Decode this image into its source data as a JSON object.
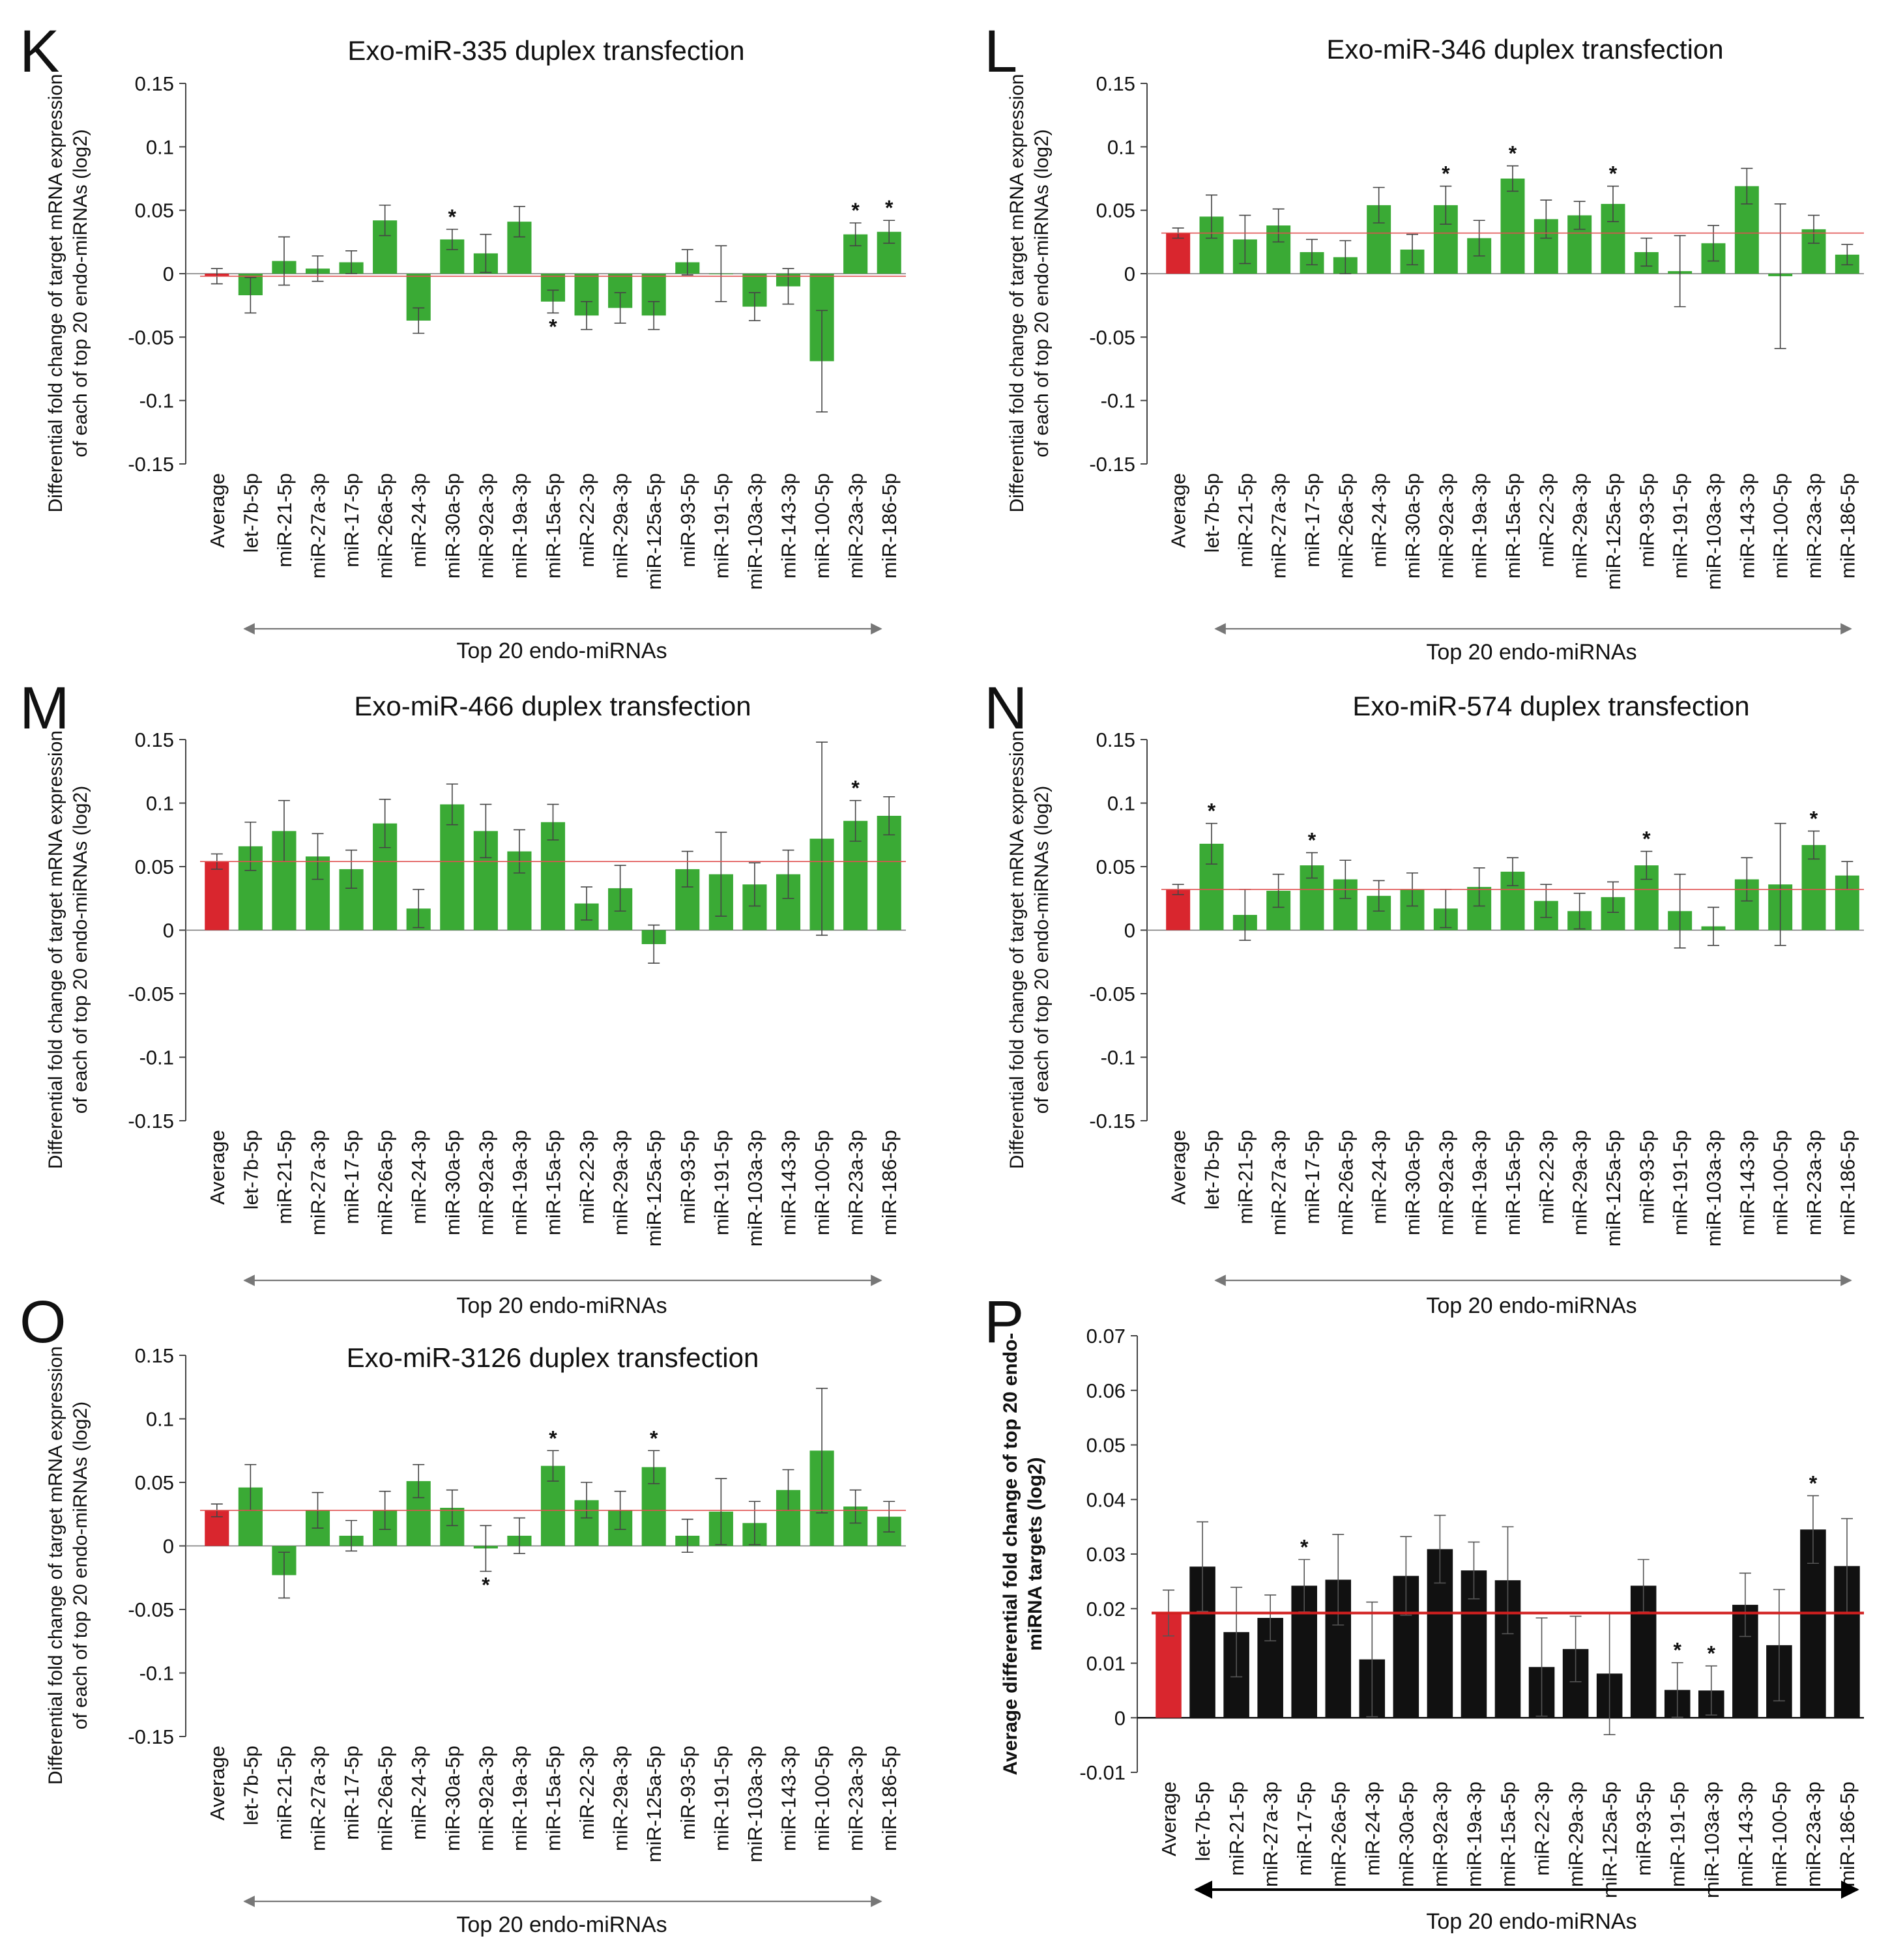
{
  "categories": [
    "Average",
    "let-7b-5p",
    "miR-21-5p",
    "miR-27a-3p",
    "miR-17-5p",
    "miR-26a-5p",
    "miR-24-3p",
    "miR-30a-5p",
    "miR-92a-3p",
    "miR-19a-3p",
    "miR-15a-5p",
    "miR-22-3p",
    "miR-29a-3p",
    "miR-125a-5p",
    "miR-93-5p",
    "miR-191-5p",
    "miR-103a-3p",
    "miR-143-3p",
    "miR-100-5p",
    "miR-23a-3p",
    "miR-186-5p"
  ],
  "colors": {
    "average": "#d9262e",
    "green": "#3aaa35",
    "black": "#111111",
    "ref_line": "#e05050",
    "ref_line_p": "#d21f1f"
  },
  "chart_data": [
    {
      "type": "bar",
      "panel_letter": "K",
      "title": "Exo-miR-335 duplex transfection",
      "ylabel": [
        "Differential fold change of target mRNA expression",
        "of each of top 20 endo-miRNAs (log2)"
      ],
      "xlabel": "Top 20 endo-miRNAs",
      "ylim": [
        -0.15,
        0.15
      ],
      "yticks": [
        "0.15",
        "0.1",
        "0.05",
        "0",
        "-0.05",
        "-0.1",
        "-0.15"
      ],
      "ytick_values": [
        0.15,
        0.1,
        0.05,
        0,
        -0.05,
        -0.1,
        -0.15
      ],
      "reference_line": -0.002,
      "values": [
        -0.002,
        -0.017,
        0.01,
        0.004,
        0.009,
        0.042,
        -0.037,
        0.027,
        0.016,
        0.041,
        -0.022,
        -0.033,
        -0.027,
        -0.033,
        0.009,
        0.0,
        -0.026,
        -0.01,
        -0.069,
        0.031,
        0.033
      ],
      "errors": [
        0.006,
        0.014,
        0.019,
        0.01,
        0.009,
        0.012,
        0.01,
        0.008,
        0.015,
        0.012,
        0.009,
        0.011,
        0.012,
        0.011,
        0.01,
        0.022,
        0.011,
        0.014,
        0.04,
        0.009,
        0.009
      ],
      "significant": [
        {
          "index": 7,
          "label": "*",
          "side": "top"
        },
        {
          "index": 10,
          "label": "*",
          "side": "bottom"
        },
        {
          "index": 19,
          "label": "*",
          "side": "top"
        },
        {
          "index": 20,
          "label": "*",
          "side": "top"
        }
      ]
    },
    {
      "type": "bar",
      "panel_letter": "L",
      "title": "Exo-miR-346 duplex transfection",
      "ylabel": [
        "Differential fold change of target mRNA expression",
        "of each of top 20 endo-miRNAs (log2)"
      ],
      "xlabel": "Top 20 endo-miRNAs",
      "ylim": [
        -0.15,
        0.15
      ],
      "yticks": [
        "0.15",
        "0.1",
        "0.05",
        "0",
        "-0.05",
        "-0.1",
        "-0.15"
      ],
      "ytick_values": [
        0.15,
        0.1,
        0.05,
        0,
        -0.05,
        -0.1,
        -0.15
      ],
      "reference_line": 0.032,
      "values": [
        0.032,
        0.045,
        0.027,
        0.038,
        0.017,
        0.013,
        0.054,
        0.019,
        0.054,
        0.028,
        0.075,
        0.043,
        0.046,
        0.055,
        0.017,
        0.002,
        0.024,
        0.069,
        -0.002,
        0.035,
        0.015
      ],
      "errors": [
        0.004,
        0.017,
        0.019,
        0.013,
        0.01,
        0.013,
        0.014,
        0.012,
        0.015,
        0.014,
        0.01,
        0.015,
        0.011,
        0.014,
        0.011,
        0.028,
        0.014,
        0.014,
        0.057,
        0.011,
        0.008
      ],
      "significant": [
        {
          "index": 8,
          "label": "*",
          "side": "top"
        },
        {
          "index": 10,
          "label": "*",
          "side": "top"
        },
        {
          "index": 13,
          "label": "*",
          "side": "top"
        }
      ]
    },
    {
      "type": "bar",
      "panel_letter": "M",
      "title": "Exo-miR-466 duplex transfection",
      "ylabel": [
        "Differential fold change of target mRNA expression",
        "of each of top 20 endo-miRNAs (log2)"
      ],
      "xlabel": "Top 20 endo-miRNAs",
      "ylim": [
        -0.15,
        0.15
      ],
      "yticks": [
        "0.15",
        "0.1",
        "0.05",
        "0",
        "-0.05",
        "-0.1",
        "-0.15"
      ],
      "ytick_values": [
        0.15,
        0.1,
        0.05,
        0,
        -0.05,
        -0.1,
        -0.15
      ],
      "reference_line": 0.054,
      "values": [
        0.054,
        0.066,
        0.078,
        0.058,
        0.048,
        0.084,
        0.017,
        0.099,
        0.078,
        0.062,
        0.085,
        0.021,
        0.033,
        -0.011,
        0.048,
        0.044,
        0.036,
        0.044,
        0.072,
        0.086,
        0.09
      ],
      "errors": [
        0.006,
        0.019,
        0.024,
        0.018,
        0.015,
        0.019,
        0.015,
        0.016,
        0.021,
        0.017,
        0.014,
        0.013,
        0.018,
        0.015,
        0.014,
        0.033,
        0.017,
        0.019,
        0.076,
        0.016,
        0.015
      ],
      "significant": [
        {
          "index": 19,
          "label": "*",
          "side": "top"
        }
      ]
    },
    {
      "type": "bar",
      "panel_letter": "N",
      "title": "Exo-miR-574 duplex transfection",
      "ylabel": [
        "Differential fold change of target mRNA expression",
        "of each of top 20 endo-miRNAs (log2)"
      ],
      "xlabel": "Top 20 endo-miRNAs",
      "ylim": [
        -0.15,
        0.15
      ],
      "yticks": [
        "0.15",
        "0.1",
        "0.05",
        "0",
        "-0.05",
        "-0.1",
        "-0.15"
      ],
      "ytick_values": [
        0.15,
        0.1,
        0.05,
        0,
        -0.05,
        -0.1,
        -0.15
      ],
      "reference_line": 0.032,
      "values": [
        0.032,
        0.068,
        0.012,
        0.031,
        0.051,
        0.04,
        0.027,
        0.032,
        0.017,
        0.034,
        0.046,
        0.023,
        0.015,
        0.026,
        0.051,
        0.015,
        0.003,
        0.04,
        0.036,
        0.067,
        0.043
      ],
      "errors": [
        0.004,
        0.016,
        0.02,
        0.013,
        0.01,
        0.015,
        0.012,
        0.013,
        0.015,
        0.015,
        0.011,
        0.013,
        0.014,
        0.012,
        0.011,
        0.029,
        0.015,
        0.017,
        0.048,
        0.011,
        0.011
      ],
      "significant": [
        {
          "index": 1,
          "label": "*",
          "side": "top"
        },
        {
          "index": 4,
          "label": "*",
          "side": "top"
        },
        {
          "index": 14,
          "label": "*",
          "side": "top"
        },
        {
          "index": 19,
          "label": "*",
          "side": "top"
        }
      ]
    },
    {
      "type": "bar",
      "panel_letter": "O",
      "title": "Exo-miR-3126 duplex transfection",
      "ylabel": [
        "Differential fold change of target mRNA expression",
        "of each of top 20 endo-miRNAs (log2)"
      ],
      "xlabel": "Top 20 endo-miRNAs",
      "ylim": [
        -0.15,
        0.15
      ],
      "yticks": [
        "0.15",
        "0.1",
        "0.05",
        "0",
        "-0.05",
        "-0.1",
        "-0.15"
      ],
      "ytick_values": [
        0.15,
        0.1,
        0.05,
        0,
        -0.05,
        -0.1,
        -0.15
      ],
      "reference_line": 0.028,
      "values": [
        0.028,
        0.046,
        -0.023,
        0.028,
        0.008,
        0.028,
        0.051,
        0.03,
        -0.002,
        0.008,
        0.063,
        0.036,
        0.028,
        0.062,
        0.008,
        0.027,
        0.018,
        0.044,
        0.075,
        0.031,
        0.023
      ],
      "errors": [
        0.005,
        0.018,
        0.018,
        0.014,
        0.012,
        0.015,
        0.013,
        0.014,
        0.018,
        0.014,
        0.012,
        0.014,
        0.015,
        0.013,
        0.013,
        0.026,
        0.017,
        0.016,
        0.049,
        0.013,
        0.012
      ],
      "significant": [
        {
          "index": 8,
          "label": "*",
          "side": "bottom"
        },
        {
          "index": 10,
          "label": "*",
          "side": "top"
        },
        {
          "index": 13,
          "label": "*",
          "side": "top"
        }
      ]
    },
    {
      "type": "bar",
      "panel_letter": "P",
      "title": "",
      "ylabel": [
        "Average differential fold change of top 20 endo-",
        "miRNA targets (log2)"
      ],
      "ylabel_bold": true,
      "xlabel": "Top 20 endo-miRNAs",
      "ylim": [
        -0.01,
        0.07
      ],
      "yticks": [
        "0.07",
        "0.06",
        "0.05",
        "0.04",
        "0.03",
        "0.02",
        "0.01",
        "0",
        "-0.01"
      ],
      "ytick_values": [
        0.07,
        0.06,
        0.05,
        0.04,
        0.03,
        0.02,
        0.01,
        0,
        -0.01
      ],
      "reference_line": 0.0192,
      "values": [
        0.0192,
        0.0277,
        0.0157,
        0.0183,
        0.0242,
        0.0253,
        0.0107,
        0.026,
        0.0309,
        0.027,
        0.0252,
        0.0093,
        0.0126,
        0.0081,
        0.0242,
        0.0051,
        0.005,
        0.0207,
        0.0133,
        0.0345,
        0.0278
      ],
      "errors": [
        0.0042,
        0.0082,
        0.0082,
        0.0042,
        0.0048,
        0.0083,
        0.0105,
        0.0072,
        0.0062,
        0.0052,
        0.0098,
        0.009,
        0.006,
        0.0112,
        0.0048,
        0.005,
        0.0045,
        0.0058,
        0.0102,
        0.0062,
        0.0087
      ],
      "significant": [
        {
          "index": 4,
          "label": "*",
          "side": "top"
        },
        {
          "index": 15,
          "label": "*",
          "side": "top"
        },
        {
          "index": 16,
          "label": "*",
          "side": "top"
        },
        {
          "index": 19,
          "label": "*",
          "side": "top"
        }
      ]
    }
  ]
}
